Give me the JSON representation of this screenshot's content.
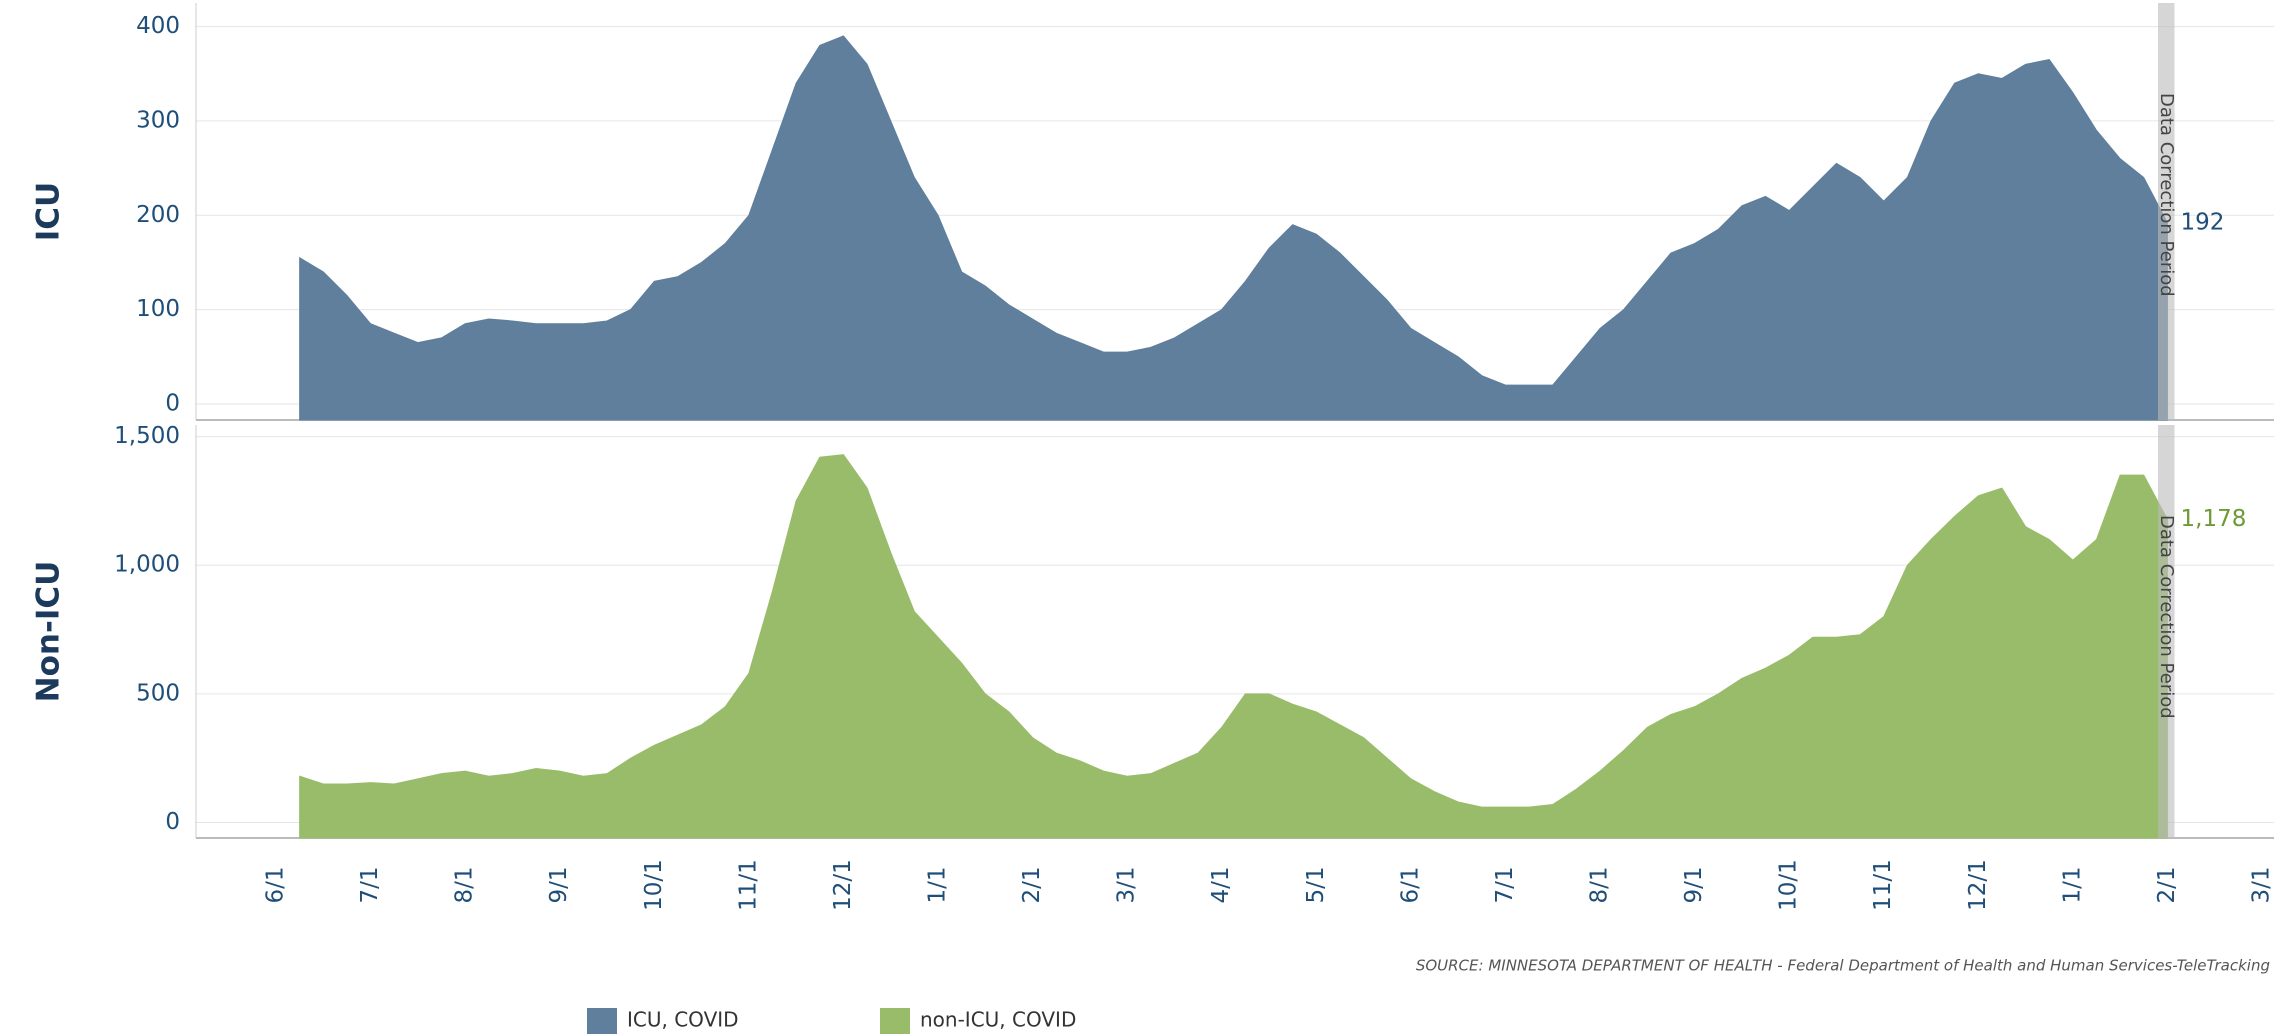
{
  "chart_data": {
    "type": "area",
    "categories": [
      "6/1",
      null,
      null,
      null,
      "7/1",
      null,
      null,
      null,
      "8/1",
      null,
      null,
      null,
      "9/1",
      null,
      null,
      null,
      "10/1",
      null,
      null,
      null,
      "11/1",
      null,
      null,
      null,
      "12/1",
      null,
      null,
      null,
      "1/1",
      null,
      null,
      null,
      "2/1",
      null,
      null,
      null,
      "3/1",
      null,
      null,
      null,
      "4/1",
      null,
      null,
      null,
      "5/1",
      null,
      null,
      null,
      "6/1",
      null,
      null,
      null,
      "7/1",
      null,
      null,
      null,
      "8/1",
      null,
      null,
      null,
      "9/1",
      null,
      null,
      null,
      "10/1",
      null,
      null,
      null,
      "11/1",
      null,
      null,
      null,
      "12/1",
      null,
      null,
      null,
      "1/1",
      null,
      null,
      null,
      "2/1",
      null,
      null,
      null,
      "3/1"
    ],
    "series": [
      {
        "name": "ICU, COVID",
        "color": "#5f7f9c",
        "ylabel": "ICU",
        "ylim": [
          -17,
          425
        ],
        "yticks": [
          0,
          100,
          200,
          300,
          400
        ],
        "end_label": 192,
        "values": [
          null,
          155,
          140,
          115,
          85,
          75,
          65,
          70,
          85,
          90,
          88,
          85,
          85,
          85,
          88,
          100,
          130,
          135,
          150,
          170,
          200,
          270,
          340,
          380,
          390,
          360,
          300,
          240,
          200,
          140,
          125,
          105,
          90,
          75,
          65,
          55,
          55,
          60,
          70,
          85,
          100,
          130,
          165,
          190,
          180,
          160,
          135,
          110,
          80,
          65,
          50,
          30,
          20,
          20,
          20,
          50,
          80,
          100,
          130,
          160,
          170,
          185,
          210,
          220,
          205,
          230,
          255,
          240,
          215,
          240,
          300,
          340,
          350,
          345,
          360,
          365,
          330,
          290,
          260,
          240,
          192,
          null,
          null,
          null,
          null
        ]
      },
      {
        "name": "non-ICU, COVID",
        "color": "#98bc6a",
        "ylabel": "Non-ICU",
        "ylim": [
          -60,
          1545
        ],
        "yticks": [
          0,
          500,
          {
            "value": 1000,
            "label": "1,000"
          },
          {
            "value": 1500,
            "label": "1,500"
          }
        ],
        "end_label": {
          "value": 1178,
          "label": "1,178"
        },
        "values": [
          null,
          180,
          150,
          150,
          155,
          150,
          170,
          190,
          200,
          180,
          190,
          210,
          200,
          180,
          190,
          250,
          300,
          340,
          380,
          450,
          580,
          900,
          1250,
          1420,
          1430,
          1300,
          1050,
          820,
          720,
          620,
          500,
          430,
          330,
          270,
          240,
          200,
          180,
          190,
          230,
          270,
          370,
          500,
          500,
          460,
          430,
          380,
          330,
          250,
          170,
          120,
          80,
          60,
          60,
          60,
          70,
          130,
          200,
          280,
          370,
          420,
          450,
          500,
          560,
          600,
          650,
          720,
          720,
          730,
          800,
          1000,
          1100,
          1190,
          1270,
          1300,
          1150,
          1100,
          1020,
          1100,
          1350,
          1350,
          1178,
          null,
          null,
          null,
          null
        ]
      }
    ],
    "annotation": "Data Correction Period",
    "source": "SOURCE: MINNESOTA DEPARTMENT OF HEALTH - Federal Department of Health and Human Services-TeleTracking",
    "grid": true
  }
}
